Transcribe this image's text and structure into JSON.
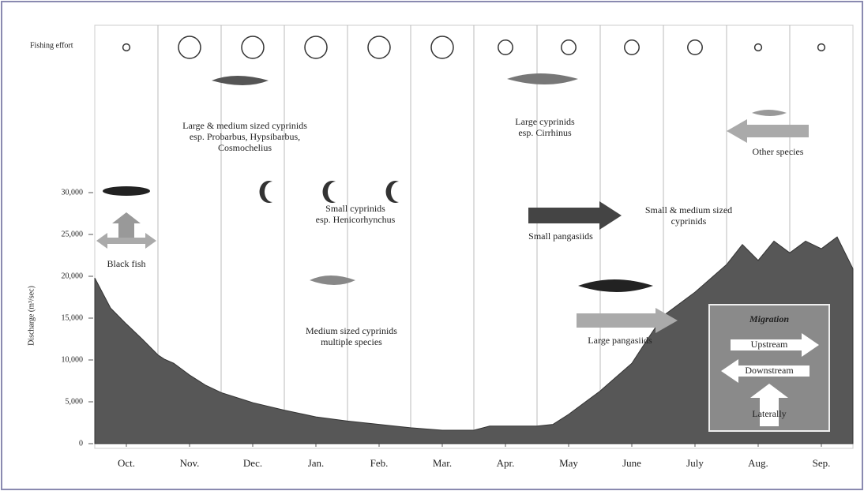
{
  "chart_data": {
    "type": "area",
    "ylabel": "Discharge (m³/sec)",
    "x": [
      0,
      0.25,
      0.5,
      0.75,
      1,
      1.1,
      1.25,
      1.5,
      1.75,
      2,
      2.5,
      3,
      3.5,
      4,
      4.5,
      5,
      5.5,
      6,
      6.25,
      6.5,
      7,
      7.25,
      7.5,
      8,
      8.5,
      8.75,
      9,
      9.5,
      10,
      10.25,
      10.5,
      10.75,
      11,
      11.25,
      11.5,
      11.75,
      12
    ],
    "values": [
      19800,
      16200,
      14300,
      12500,
      10600,
      10100,
      9600,
      8200,
      7000,
      6100,
      4900,
      4000,
      3200,
      2700,
      2300,
      1900,
      1600,
      1600,
      2100,
      2100,
      2100,
      2300,
      3500,
      6300,
      9600,
      12500,
      15300,
      18100,
      21400,
      23800,
      21900,
      24200,
      22800,
      24200,
      23300,
      24700,
      20900
    ],
    "color": "#575757",
    "xlim": [
      0,
      12
    ],
    "xticks": [
      {
        "value": 0.5,
        "label": "Oct."
      },
      {
        "value": 1.5,
        "label": "Nov."
      },
      {
        "value": 2.5,
        "label": "Dec."
      },
      {
        "value": 3.5,
        "label": "Jan."
      },
      {
        "value": 4.5,
        "label": "Feb."
      },
      {
        "value": 5.5,
        "label": "Mar."
      },
      {
        "value": 6.5,
        "label": "Apr."
      },
      {
        "value": 7.5,
        "label": "May"
      },
      {
        "value": 8.5,
        "label": "June"
      },
      {
        "value": 9.5,
        "label": "July"
      },
      {
        "value": 10.5,
        "label": "Aug."
      },
      {
        "value": 11.5,
        "label": "Sep."
      }
    ],
    "ylim": [
      0,
      50000
    ],
    "yticks": [
      0,
      {
        "value": 5000,
        "label": "5,000"
      },
      {
        "value": 10000,
        "label": "10,000"
      },
      {
        "value": 15000,
        "label": "15,000"
      },
      {
        "value": 20000,
        "label": "20,000"
      },
      {
        "value": 25000,
        "label": "25,000"
      },
      {
        "value": 30000,
        "label": "30,000"
      }
    ],
    "fishing_effort": {
      "label": "Fishing effort",
      "values": [
        1,
        5,
        5,
        5,
        5,
        5,
        3,
        3,
        3,
        3,
        1,
        1
      ]
    },
    "annotations": [
      {
        "lines": [
          "Black fish"
        ]
      },
      {
        "lines": [
          "Large & medium sized cyprinids",
          "esp. Probarbus, Hypsibarbus,",
          "Cosmochelius"
        ]
      },
      {
        "lines": [
          "Small cyprinids",
          "esp. Henicorhynchus"
        ]
      },
      {
        "lines": [
          "Medium sized cyprinids",
          "multiple species"
        ]
      },
      {
        "lines": [
          "Large cyprinids",
          "esp. Cirrhinus"
        ]
      },
      {
        "lines": [
          "Small pangasiids"
        ]
      },
      {
        "lines": [
          "Small & medium sized",
          "cyprinids"
        ]
      },
      {
        "lines": [
          "Other species"
        ]
      },
      {
        "lines": [
          "Large pangasiids"
        ]
      }
    ],
    "legend": {
      "title": "Migration",
      "items": [
        "Upstream",
        "Downstream",
        "Laterally"
      ]
    }
  }
}
